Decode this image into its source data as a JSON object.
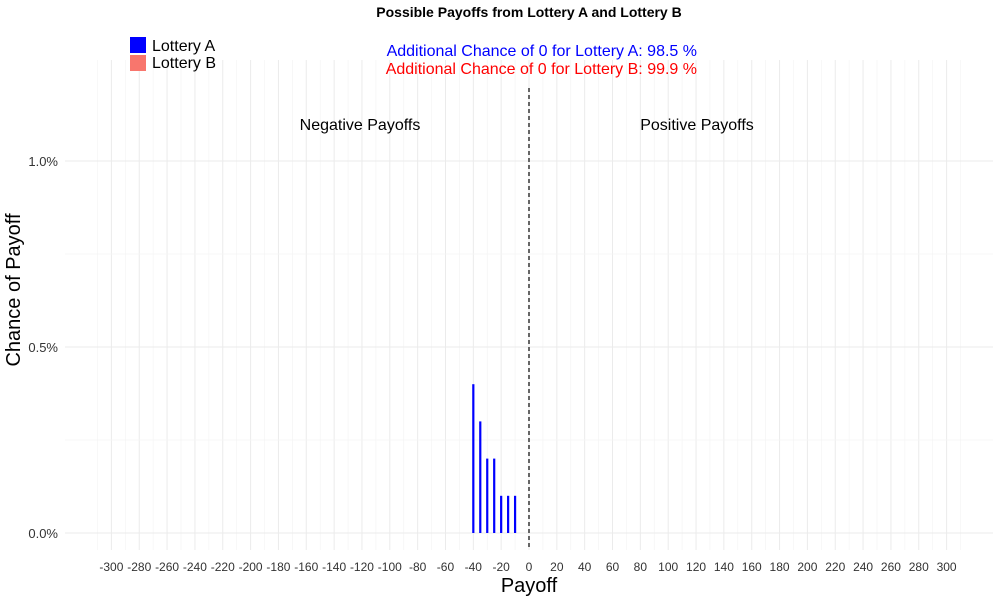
{
  "chart_data": {
    "type": "bar",
    "title": "Possible Payoffs from Lottery A and Lottery B",
    "xlabel": "Payoff",
    "ylabel": "Chance of Payoff",
    "xlim": [
      -310,
      310
    ],
    "ylim": [
      0,
      1.2
    ],
    "x_ticks": [
      -300,
      -280,
      -260,
      -240,
      -220,
      -200,
      -180,
      -160,
      -140,
      -120,
      -100,
      -80,
      -60,
      -40,
      -20,
      0,
      20,
      40,
      60,
      80,
      100,
      120,
      140,
      160,
      180,
      200,
      220,
      240,
      260,
      280,
      300
    ],
    "y_ticks": [
      {
        "value": 0,
        "label": "0.0%"
      },
      {
        "value": 0.5,
        "label": "0.5%"
      },
      {
        "value": 1.0,
        "label": "1.0%"
      }
    ],
    "grid": true,
    "legend_position": "top-left",
    "series": [
      {
        "name": "Lottery A",
        "color": "#0000ff",
        "x": [
          -40,
          -35,
          -30,
          -25,
          -20,
          -15,
          -10
        ],
        "values": [
          0.4,
          0.3,
          0.2,
          0.2,
          0.1,
          0.1,
          0.1
        ]
      },
      {
        "name": "Lottery B",
        "color": "#f8766d",
        "x": [],
        "values": []
      }
    ],
    "zero_line": {
      "x": 0,
      "style": "dashed",
      "color": "#666666"
    },
    "region_labels": {
      "negative": "Negative Payoffs",
      "positive": "Positive Payoffs"
    },
    "annotations": [
      {
        "text": "Additional Chance of 0 for Lottery A:  98.5 %",
        "color": "#0000ff"
      },
      {
        "text": "Additional Chance of 0 for Lottery B:  99.9 %",
        "color": "#ff0000"
      }
    ]
  }
}
